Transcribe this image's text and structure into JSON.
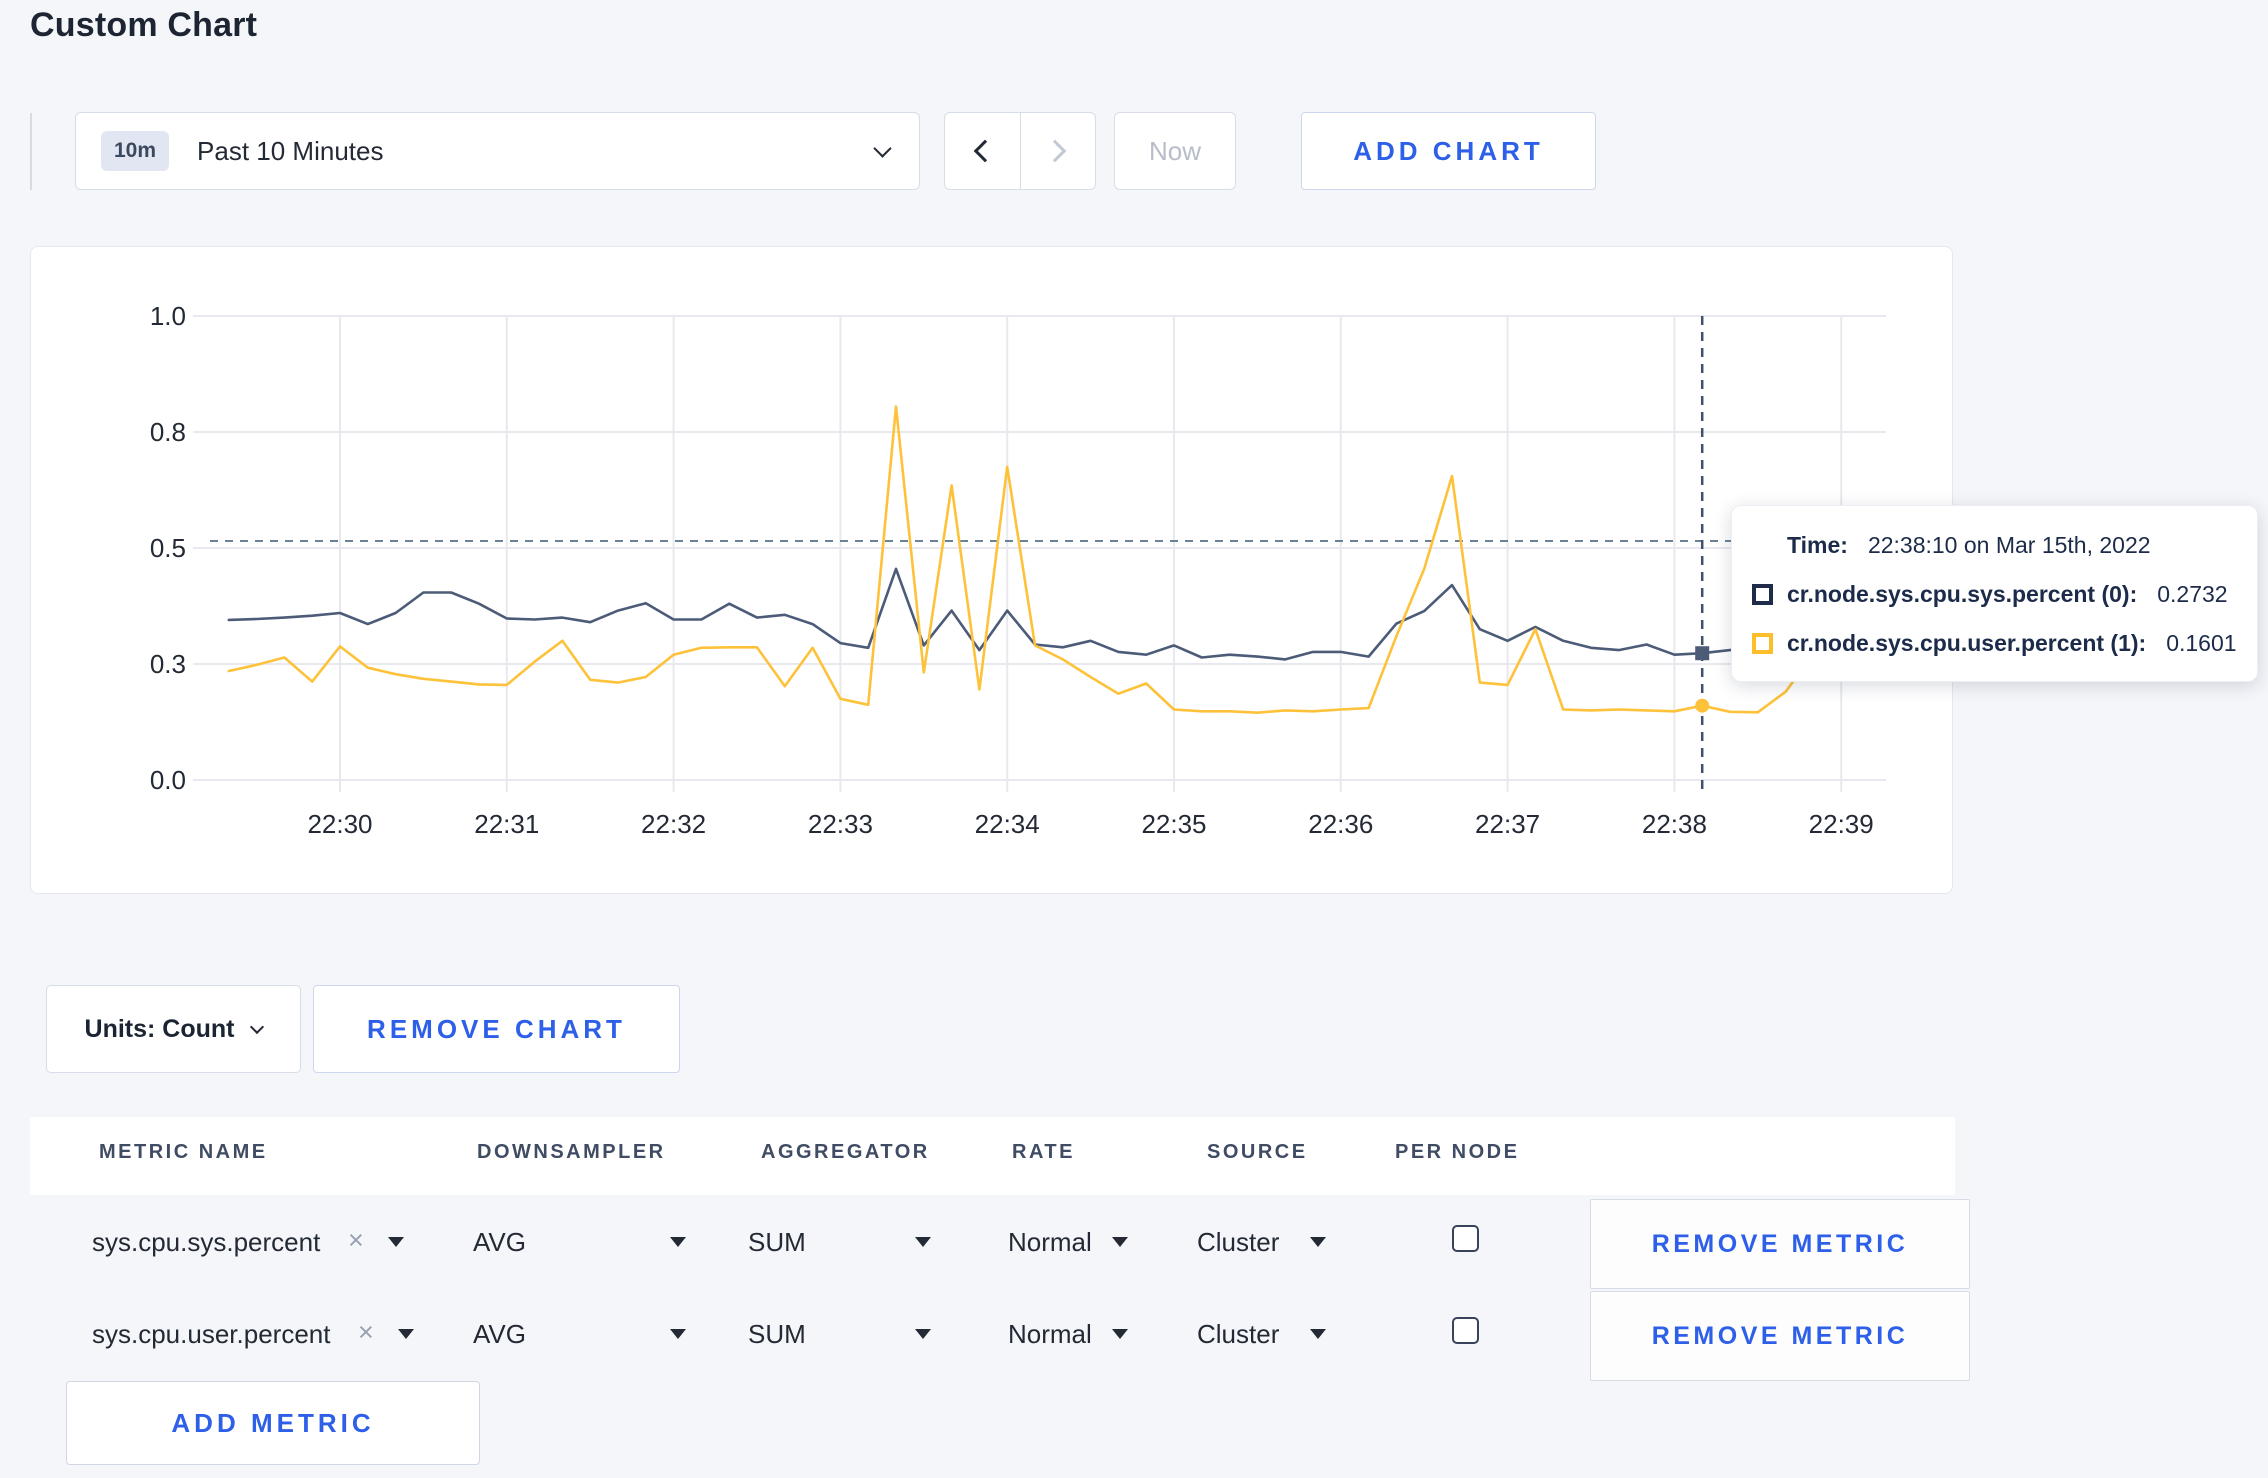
{
  "page": {
    "title": "Custom Chart"
  },
  "toolbar": {
    "range_badge": "10m",
    "range_label": "Past 10 Minutes",
    "now_label": "Now",
    "add_chart_label": "ADD CHART",
    "icons": {
      "range_open": "chevron-down-icon",
      "prev": "chevron-left-icon",
      "next": "chevron-right-icon"
    }
  },
  "chart_data": {
    "type": "line",
    "title": "",
    "xlabel": "",
    "ylabel": "",
    "ylim": [
      0,
      1
    ],
    "grid": true,
    "x_ticks": [
      "22:30",
      "22:31",
      "22:32",
      "22:33",
      "22:34",
      "22:35",
      "22:36",
      "22:37",
      "22:38",
      "22:39"
    ],
    "y_ticks": [
      "0.0",
      "0.3",
      "0.5",
      "0.8",
      "1.0"
    ],
    "y_tick_values": [
      0,
      0.25,
      0.5,
      0.75,
      1.0
    ],
    "start_time": "22:29:20",
    "interval_seconds": 10,
    "series": [
      {
        "name": "cr.node.sys.cpu.sys.percent (0)",
        "color": "#4c5b77",
        "values": [
          0.345,
          0.347,
          0.35,
          0.354,
          0.36,
          0.336,
          0.36,
          0.404,
          0.404,
          0.38,
          0.348,
          0.346,
          0.35,
          0.34,
          0.365,
          0.381,
          0.346,
          0.346,
          0.38,
          0.35,
          0.356,
          0.336,
          0.295,
          0.285,
          0.455,
          0.29,
          0.365,
          0.28,
          0.365,
          0.292,
          0.286,
          0.3,
          0.276,
          0.27,
          0.29,
          0.264,
          0.27,
          0.266,
          0.26,
          0.276,
          0.276,
          0.266,
          0.337,
          0.364,
          0.42,
          0.325,
          0.3,
          0.33,
          0.3,
          0.285,
          0.28,
          0.292,
          0.27,
          0.2732,
          0.28,
          0.285,
          0.28,
          0.285,
          0.278,
          0.28
        ]
      },
      {
        "name": "cr.node.sys.cpu.user.percent (1)",
        "color": "#fdc23a",
        "values": [
          0.235,
          0.248,
          0.264,
          0.212,
          0.288,
          0.242,
          0.228,
          0.218,
          0.212,
          0.206,
          0.205,
          0.255,
          0.3,
          0.216,
          0.21,
          0.222,
          0.27,
          0.285,
          0.286,
          0.286,
          0.202,
          0.285,
          0.175,
          0.162,
          0.805,
          0.232,
          0.635,
          0.195,
          0.675,
          0.29,
          0.26,
          0.222,
          0.186,
          0.208,
          0.152,
          0.148,
          0.148,
          0.145,
          0.15,
          0.148,
          0.152,
          0.155,
          0.31,
          0.455,
          0.655,
          0.21,
          0.205,
          0.325,
          0.152,
          0.15,
          0.152,
          0.15,
          0.148,
          0.1601,
          0.147,
          0.146,
          0.19,
          0.272,
          0.282,
          0.252
        ]
      }
    ],
    "hover": {
      "index": 53,
      "time": "22:38:10",
      "crosshair_value": 0.515
    }
  },
  "tooltip": {
    "time_label": "Time:",
    "time_value": "22:38:10 on Mar 15th, 2022",
    "rows": [
      {
        "label": "cr.node.sys.cpu.sys.percent (0):",
        "value": "0.2732",
        "swatch_color": "#1e2b49",
        "swatch_icon": "series-swatch-icon"
      },
      {
        "label": "cr.node.sys.cpu.user.percent (1):",
        "value": "0.1601",
        "swatch_color": "#fdbe2c",
        "swatch_icon": "series-swatch-icon"
      }
    ]
  },
  "units_bar": {
    "units_label": "Units: Count",
    "remove_chart_label": "REMOVE CHART"
  },
  "metrics_table": {
    "headers": [
      "METRIC NAME",
      "DOWNSAMPLER",
      "AGGREGATOR",
      "RATE",
      "SOURCE",
      "PER NODE"
    ],
    "rows": [
      {
        "metric": "sys.cpu.sys.percent",
        "downsampler": "AVG",
        "aggregator": "SUM",
        "rate": "Normal",
        "source": "Cluster",
        "per_node_checked": false,
        "remove_label": "REMOVE METRIC"
      },
      {
        "metric": "sys.cpu.user.percent",
        "downsampler": "AVG",
        "aggregator": "SUM",
        "rate": "Normal",
        "source": "Cluster",
        "per_node_checked": false,
        "remove_label": "REMOVE METRIC"
      }
    ],
    "add_metric_label": "ADD METRIC"
  },
  "colors": {
    "accent_blue": "#2d5fe8",
    "page_background": "#f5f6fa",
    "gridline": "#e8e9ee",
    "crosshair_horizontal": "#6b8296",
    "crosshair_vertical": "#3f5269"
  }
}
